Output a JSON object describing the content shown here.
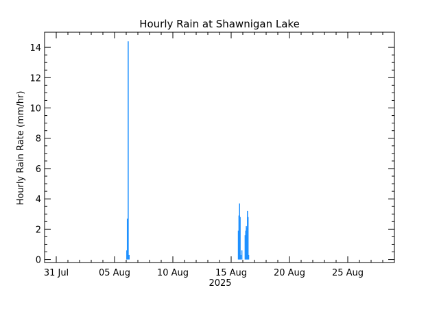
{
  "chart_data": {
    "type": "bar",
    "title": "Hourly Rain at Shawnigan Lake",
    "xlabel": "2025",
    "ylabel": "Hourly Rain Rate (mm/hr)",
    "xlim_days": [
      30,
      60
    ],
    "ylim": [
      -0.2,
      15.0
    ],
    "x_ticks": [
      {
        "day": 31,
        "label": "31 Jul"
      },
      {
        "day": 36,
        "label": "05 Aug"
      },
      {
        "day": 41,
        "label": "10 Aug"
      },
      {
        "day": 46,
        "label": "15 Aug"
      },
      {
        "day": 51,
        "label": "20 Aug"
      },
      {
        "day": 56,
        "label": "25 Aug"
      }
    ],
    "y_ticks": [
      "0",
      "2",
      "4",
      "6",
      "8",
      "10",
      "12",
      "14"
    ],
    "bar_color": "#1e90ff",
    "x_unit_note": "x = days since 1 Jul 2025 (day 31 = 31 Jul)",
    "bars": [
      {
        "x": 37.05,
        "y": 0.6
      },
      {
        "x": 37.1,
        "y": 2.7
      },
      {
        "x": 37.17,
        "y": 14.4
      },
      {
        "x": 37.25,
        "y": 0.3
      },
      {
        "x": 46.62,
        "y": 1.9
      },
      {
        "x": 46.67,
        "y": 2.9
      },
      {
        "x": 46.72,
        "y": 3.7
      },
      {
        "x": 46.77,
        "y": 2.8
      },
      {
        "x": 46.82,
        "y": 0.3
      },
      {
        "x": 46.92,
        "y": 0.6
      },
      {
        "x": 47.2,
        "y": 1.6
      },
      {
        "x": 47.25,
        "y": 1.9
      },
      {
        "x": 47.3,
        "y": 2.2
      },
      {
        "x": 47.35,
        "y": 2.1
      },
      {
        "x": 47.4,
        "y": 3.2
      },
      {
        "x": 47.45,
        "y": 2.8
      },
      {
        "x": 47.5,
        "y": 0.3
      }
    ]
  }
}
